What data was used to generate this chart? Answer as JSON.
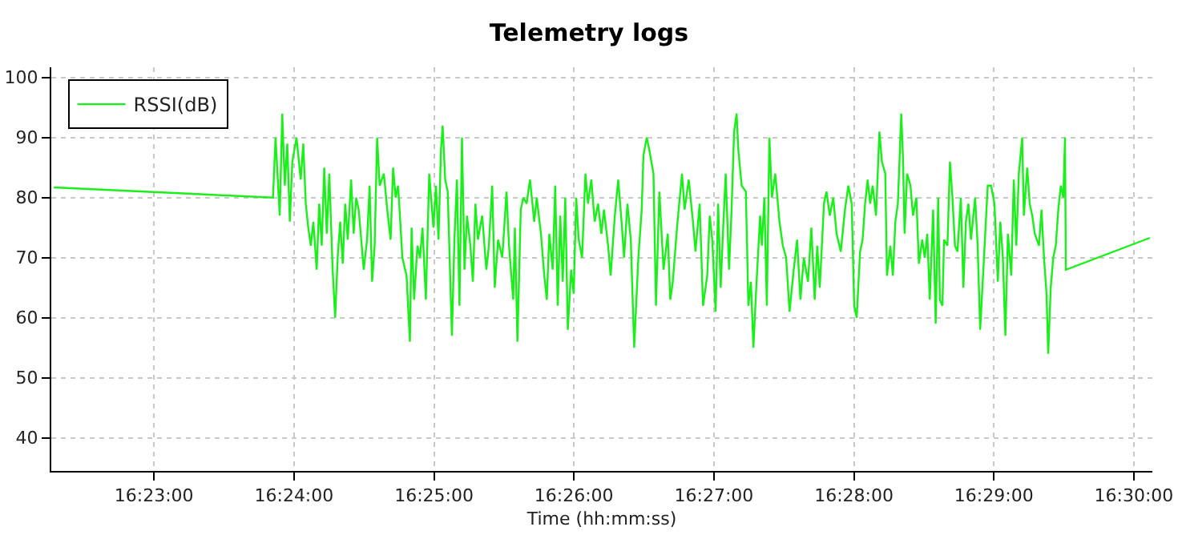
{
  "chart_data": {
    "type": "line",
    "title": "Telemetry logs",
    "xlabel": "Time (hh:mm:ss)",
    "x": [
      16.3714,
      16.3975,
      16.3978,
      16.3983,
      16.3986,
      16.3989,
      16.3992,
      16.3995,
      16.3998,
      16.4003,
      16.4008,
      16.4011,
      16.4014,
      16.4017,
      16.402,
      16.4023,
      16.4027,
      16.403,
      16.4033,
      16.4036,
      16.4039,
      16.4042,
      16.4046,
      16.4049,
      16.4052,
      16.4055,
      16.4058,
      16.4061,
      16.4064,
      16.4068,
      16.4071,
      16.4074,
      16.4077,
      16.4083,
      16.4087,
      16.409,
      16.4093,
      16.4096,
      16.4099,
      16.4102,
      16.4107,
      16.4111,
      16.4115,
      16.4118,
      16.4121,
      16.4124,
      16.4129,
      16.4134,
      16.4138,
      16.414,
      16.4143,
      16.4147,
      16.415,
      16.4153,
      16.4157,
      16.4161,
      16.4166,
      16.4169,
      16.4172,
      16.4175,
      16.4177,
      16.418,
      16.4183,
      16.4188,
      16.4191,
      16.4194,
      16.4197,
      16.42,
      16.4203,
      16.4206,
      16.421,
      16.4213,
      16.4216,
      16.4219,
      16.4224,
      16.4229,
      16.4232,
      16.4236,
      16.4239,
      16.4243,
      16.4248,
      16.4253,
      16.4256,
      16.4261,
      16.4263,
      16.4266,
      16.427,
      16.4273,
      16.4277,
      16.4281,
      16.4286,
      16.4289,
      16.4294,
      16.4298,
      16.4301,
      16.4304,
      16.4308,
      16.4311,
      16.4314,
      16.4317,
      16.432,
      16.4323,
      16.4326,
      16.433,
      16.4333,
      16.4336,
      16.4339,
      16.4343,
      16.4347,
      16.435,
      16.4354,
      16.4358,
      16.4362,
      16.4366,
      16.4369,
      16.4374,
      16.4377,
      16.4382,
      16.4386,
      16.439,
      16.4393,
      16.4397,
      16.4401,
      16.4405,
      16.441,
      16.4414,
      16.4416,
      16.442,
      16.4423,
      16.4428,
      16.4431,
      16.4435,
      16.444,
      16.4445,
      16.4448,
      16.4451,
      16.4456,
      16.4462,
      16.4465,
      16.447,
      16.4475,
      16.4478,
      16.4483,
      16.4487,
      16.4492,
      16.4495,
      16.4498,
      16.4502,
      16.4505,
      16.4508,
      16.4511,
      16.4514,
      16.4518,
      16.4521,
      16.4524,
      16.4527,
      16.4529,
      16.4533,
      16.4538,
      16.4541,
      16.4544,
      16.4547,
      16.455,
      16.4555,
      16.4557,
      16.456,
      16.4563,
      16.4566,
      16.4569,
      16.4573,
      16.4578,
      16.4582,
      16.4586,
      16.459,
      16.4595,
      16.4599,
      16.4603,
      16.4607,
      16.4612,
      16.4616,
      16.462,
      16.4623,
      16.4626,
      16.4631,
      16.4634,
      16.4638,
      16.4642,
      16.4646,
      16.4651,
      16.4656,
      16.466,
      16.4664,
      16.4667,
      16.467,
      16.4674,
      16.4677,
      16.468,
      16.4683,
      16.4686,
      16.4689,
      16.4693,
      16.4697,
      16.47,
      16.4704,
      16.4706,
      16.471,
      16.4713,
      16.4716,
      16.4719,
      16.4723,
      16.4725,
      16.4727,
      16.473,
      16.4734,
      16.4737,
      16.4741,
      16.4744,
      16.4748,
      16.4751,
      16.4754,
      16.4757,
      16.4761,
      16.4764,
      16.4767,
      16.4769,
      16.4772,
      16.4774,
      16.4778,
      16.4781,
      16.4784,
      16.4787,
      16.479,
      16.4794,
      16.4797,
      16.48,
      16.4803,
      16.4806,
      16.4811,
      16.4814,
      16.4817,
      16.482,
      16.4823,
      16.4826,
      16.483,
      16.4834,
      16.4838,
      16.4841,
      16.4844,
      16.4847,
      16.485,
      16.4854,
      16.4857,
      16.486,
      16.4863,
      16.4867,
      16.4869,
      16.4873,
      16.4876,
      16.4879,
      16.4882,
      16.4887,
      16.489,
      16.4893,
      16.4896,
      16.4898,
      16.4901,
      16.4904,
      16.4907,
      16.491,
      16.4913,
      16.4916,
      16.4918,
      16.4919,
      16.5019
    ],
    "series": [
      {
        "name": "RSSI(dB)",
        "color": "#19f019",
        "values": [
          81.7,
          80,
          90,
          77,
          94,
          82,
          89,
          76,
          86,
          90,
          83,
          89,
          79,
          75,
          72,
          76,
          68,
          79,
          72,
          85,
          74,
          84,
          68,
          60,
          70,
          76,
          69,
          79,
          73,
          83,
          74,
          80,
          78,
          68,
          73,
          82,
          66,
          72,
          90,
          82,
          84,
          78,
          73,
          85,
          80,
          82,
          70,
          67,
          56,
          75,
          63,
          72,
          70,
          75,
          63,
          84,
          75,
          82,
          73,
          88,
          92,
          83,
          81,
          57,
          73,
          83,
          62,
          90,
          68,
          77,
          72,
          66,
          79,
          73,
          77,
          68,
          72,
          82,
          65,
          73,
          70,
          81,
          72,
          63,
          75,
          56,
          78,
          80,
          79,
          83,
          76,
          80,
          74,
          67,
          63,
          74,
          68,
          82,
          62,
          77,
          66,
          80,
          58,
          68,
          64,
          80,
          73,
          70,
          84,
          79,
          83,
          76,
          79,
          74,
          78,
          72,
          67,
          77,
          83,
          76,
          70,
          79,
          73,
          55,
          70,
          78,
          87,
          90,
          88,
          84,
          62,
          81,
          68,
          74,
          63,
          66,
          75,
          84,
          78,
          83,
          76,
          71,
          79,
          62,
          67,
          77,
          73,
          61,
          79,
          65,
          75,
          84,
          68,
          78,
          91,
          94,
          88,
          82,
          81,
          62,
          66,
          55,
          64,
          77,
          72,
          80,
          62,
          90,
          80,
          84,
          76,
          72,
          70,
          61,
          68,
          73,
          63,
          70,
          66,
          75,
          63,
          72,
          65,
          79,
          81,
          77,
          80,
          74,
          71,
          78,
          82,
          79,
          62,
          60,
          71,
          73,
          79,
          83,
          79,
          82,
          77,
          91,
          86,
          84,
          67,
          72,
          67,
          76,
          79,
          94,
          87,
          74,
          84,
          82,
          77,
          80,
          69,
          73,
          70,
          74,
          63,
          78,
          59,
          80,
          63,
          62,
          73,
          72,
          86,
          80,
          72,
          71,
          80,
          65,
          76,
          79,
          73,
          80,
          72,
          58,
          66,
          74,
          82,
          82,
          79,
          66,
          76,
          70,
          57,
          74,
          67,
          83,
          72,
          84,
          90,
          77,
          85,
          79,
          77,
          74,
          72,
          78,
          70,
          64,
          54,
          65,
          70,
          72,
          78,
          82,
          80,
          90,
          68,
          73.3
        ]
      }
    ],
    "xlim": [
      16.3711,
      16.5022
    ],
    "xticks": [
      {
        "value": 16.38333,
        "label": "16:23:00"
      },
      {
        "value": 16.4,
        "label": "16:24:00"
      },
      {
        "value": 16.41667,
        "label": "16:25:00"
      },
      {
        "value": 16.43333,
        "label": "16:26:00"
      },
      {
        "value": 16.45,
        "label": "16:27:00"
      },
      {
        "value": 16.46667,
        "label": "16:28:00"
      },
      {
        "value": 16.48333,
        "label": "16:29:00"
      },
      {
        "value": 16.5,
        "label": "16:30:00"
      }
    ],
    "ylim": [
      34.5,
      101.7
    ],
    "yticks": [
      40,
      50,
      60,
      70,
      80,
      90,
      100
    ],
    "grid": true,
    "legend": "top left",
    "marker": "none",
    "line_style": "solid"
  }
}
